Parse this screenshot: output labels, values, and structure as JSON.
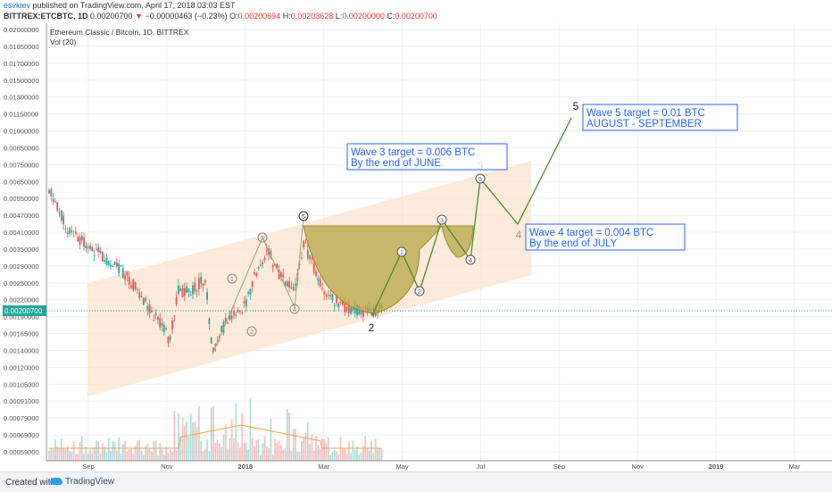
{
  "header": {
    "user": "esvkiev",
    "published": " published on TradingView.com, April 17, 2018 03:03 EST",
    "symbol": "BITTREX:ETCBTC, 1D",
    "price": "0.00200700",
    "change": "−0.00000463 (−0.23%)",
    "ohlc_label_o": "O:",
    "ohlc_o": "0.00200694",
    "ohlc_label_h": "H:",
    "ohlc_h": "0.00203628",
    "ohlc_label_l": "L:",
    "ohlc_l": "0.00200000",
    "ohlc_label_c": "C:",
    "ohlc_c": "0.00200700"
  },
  "legend": {
    "title": "Ethereum Classic / Bitcoin, 1D, BITTREX",
    "vol": "Vol (20)"
  },
  "current_price_tag": "0.00200700",
  "annotations": {
    "wave3": [
      "Wave 3 target = 0.006 BTC",
      "By the end of JUNE"
    ],
    "wave4": [
      "Wave 4 target = 0.004 BTC",
      "By the end of JULY"
    ],
    "wave5": [
      "Wave 5 target = 0.01 BTC",
      "AUGUST - SEPTEMBER"
    ]
  },
  "colors": {
    "up": "#26a69a",
    "down": "#ef5350",
    "channel": "#fbe3cc",
    "cup": "#b8a646",
    "wave": "#4e8a2a",
    "annotation": "#2962ff"
  },
  "footer": {
    "created": "Created with",
    "brand": "TradingView"
  },
  "chart_data": {
    "type": "candlestick",
    "title": "Ethereum Classic / Bitcoin, 1D, BITTREX",
    "ylim": [
      0.0005,
      0.0205
    ],
    "y_ticks": [
      "0.02000000",
      "0.01850000",
      "0.01700000",
      "0.01500000",
      "0.01300000",
      "0.01150000",
      "0.01000000",
      "0.00850000",
      "0.00750000",
      "0.00650000",
      "0.00550000",
      "0.00470000",
      "0.00410000",
      "0.00350000",
      "0.00290000",
      "0.00250000",
      "0.00220000",
      "0.00190000",
      "0.00165000",
      "0.00140000",
      "0.00120000",
      "0.00105000",
      "0.00091000",
      "0.00079000",
      "0.00069000",
      "0.00059000"
    ],
    "x_ticks": [
      "Sep",
      "Nov",
      "2018",
      "Mar",
      "May",
      "Jul",
      "Sep",
      "Nov",
      "2019",
      "Mar"
    ],
    "wave_labels": [
      "1",
      "2",
      "3",
      "4",
      "5"
    ],
    "major_wave_labels": [
      "2",
      "3",
      "4",
      "5"
    ],
    "channel": "ascending",
    "grid": true
  }
}
